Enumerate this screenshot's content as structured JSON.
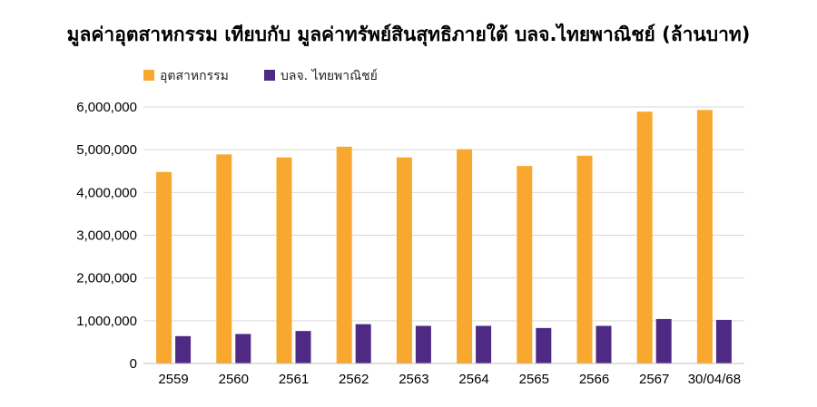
{
  "chart_data": {
    "type": "bar",
    "title": "มูลค่าอุตสาหกรรม เทียบกับ มูลค่าทรัพย์สินสุทธิภายใต้ บลจ.ไทยพาณิชย์ (ล้านบาท)",
    "xlabel": "",
    "ylabel": "",
    "categories": [
      "2559",
      "2560",
      "2561",
      "2562",
      "2563",
      "2564",
      "2565",
      "2566",
      "2567",
      "30/04/68"
    ],
    "series": [
      {
        "name": "อุตสาหกรรม",
        "color": "#F9A82F",
        "values": [
          4480000,
          4890000,
          4820000,
          5070000,
          4820000,
          5010000,
          4620000,
          4860000,
          5890000,
          5930000
        ]
      },
      {
        "name": "บลจ. ไทยพาณิชย์",
        "color": "#4E2A84",
        "values": [
          640000,
          690000,
          760000,
          920000,
          880000,
          880000,
          830000,
          880000,
          1040000,
          1020000
        ]
      }
    ],
    "ylim": [
      0,
      6000000
    ],
    "yticks": [
      "0",
      "1,000,000",
      "2,000,000",
      "3,000,000",
      "4,000,000",
      "5,000,000",
      "6,000,000"
    ],
    "grid": true,
    "legend_position": "top-left"
  }
}
